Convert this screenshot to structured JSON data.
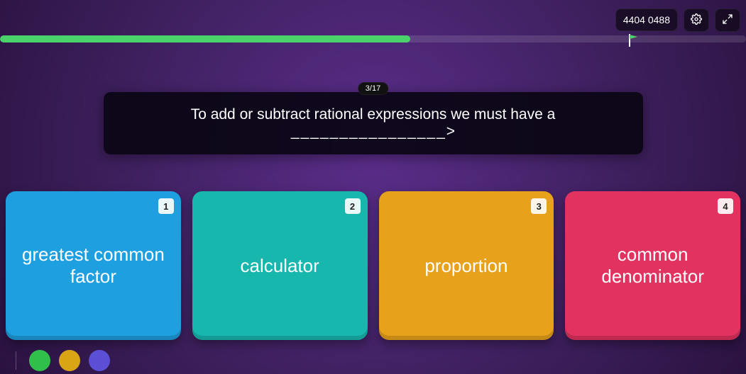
{
  "header": {
    "timer_text": "4404 0488"
  },
  "progress": {
    "percent": 55,
    "bar_color": "#4bd36b",
    "track_color": "rgba(255,255,255,0.12)",
    "flag_percent": 85,
    "flag_color": "#4bd36b"
  },
  "question": {
    "counter": "3/17",
    "text_prefix": "To add or subtract rational expressions we must have a ",
    "blank": "________________",
    "text_suffix": ">"
  },
  "answers": [
    {
      "num": "1",
      "label": "greatest common factor",
      "bg": "#1e9fe0"
    },
    {
      "num": "2",
      "label": "calculator",
      "bg": "#17b7ae"
    },
    {
      "num": "3",
      "label": "proportion",
      "bg": "#e8a11a"
    },
    {
      "num": "4",
      "label": "common denominator",
      "bg": "#e2325f"
    }
  ],
  "avatars": [
    {
      "bg": "#2fbf4a"
    },
    {
      "bg": "#d9a514"
    },
    {
      "bg": "#5b4fd6"
    }
  ]
}
